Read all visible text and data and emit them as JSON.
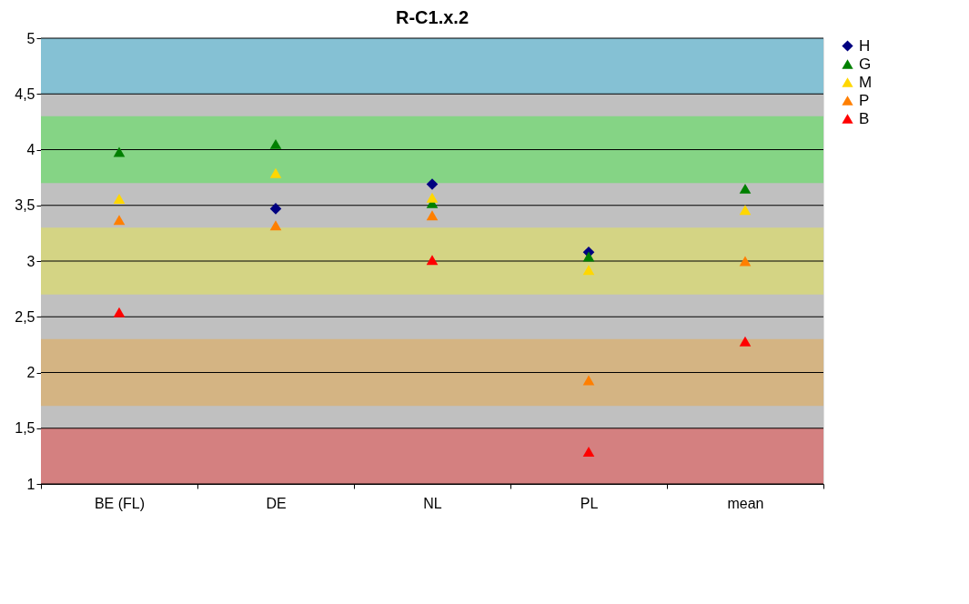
{
  "chart_data": {
    "type": "scatter",
    "title": "R-C1.x.2",
    "categories": [
      "BE (FL)",
      "DE",
      "NL",
      "PL",
      "mean"
    ],
    "series": [
      {
        "name": "H",
        "color": "#000080",
        "marker": "diamond",
        "values": [
          null,
          3.47,
          3.69,
          3.08,
          null
        ]
      },
      {
        "name": "G",
        "color": "#008000",
        "marker": "triangle",
        "values": [
          3.98,
          4.05,
          3.52,
          3.04,
          3.65
        ]
      },
      {
        "name": "M",
        "color": "#ffd700",
        "marker": "triangle",
        "values": [
          3.56,
          3.79,
          3.57,
          2.92,
          3.46
        ]
      },
      {
        "name": "P",
        "color": "#ff7f00",
        "marker": "triangle",
        "values": [
          3.37,
          3.32,
          3.41,
          1.93,
          3.0
        ]
      },
      {
        "name": "B",
        "color": "#ff0000",
        "marker": "triangle",
        "values": [
          2.54,
          null,
          3.01,
          1.29,
          2.28
        ]
      }
    ],
    "ylim": [
      1,
      5
    ],
    "yticks": [
      1,
      {
        "value": 1.5,
        "label": "1,5"
      },
      2,
      {
        "value": 2.5,
        "label": "2,5"
      },
      3,
      {
        "value": 3.5,
        "label": "3,5"
      },
      4,
      {
        "value": 4.5,
        "label": "4,5"
      },
      5
    ],
    "bands": [
      {
        "axis": "y",
        "from": 1,
        "to": 5,
        "label": null,
        "color": "#c0c0c0"
      },
      {
        "axis": "y",
        "from": 1,
        "to": 1.5,
        "label": null,
        "color": "#d48080"
      },
      {
        "axis": "y",
        "from": 1.7,
        "to": 2.3,
        "label": null,
        "color": "#d4b483"
      },
      {
        "axis": "y",
        "from": 2.7,
        "to": 3.3,
        "label": null,
        "color": "#d4d484"
      },
      {
        "axis": "y",
        "from": 3.7,
        "to": 4.3,
        "label": null,
        "color": "#85d485"
      },
      {
        "axis": "y",
        "from": 4.5,
        "to": 5,
        "label": null,
        "color": "#85c1d4"
      }
    ],
    "grid": "y",
    "legend": "right"
  }
}
